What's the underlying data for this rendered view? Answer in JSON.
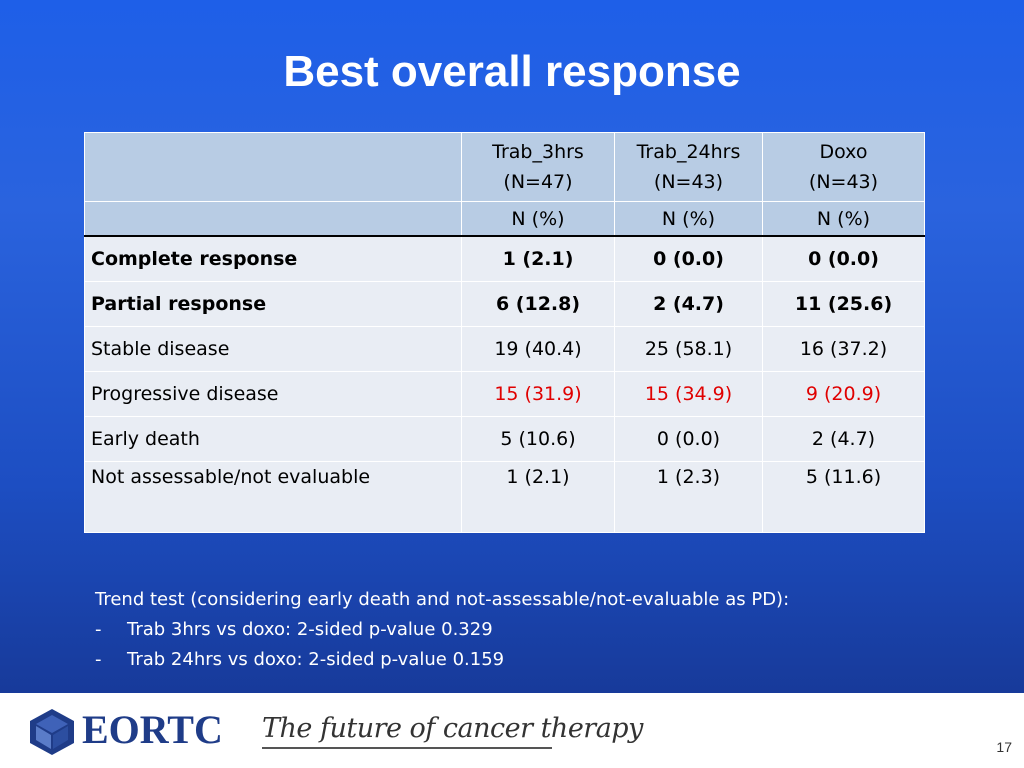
{
  "slide": {
    "title": "Best overall response",
    "page_number": "17"
  },
  "table": {
    "columns": [
      {
        "name": "Trab_3hrs",
        "n": "(N=47)",
        "unit": "N (%)"
      },
      {
        "name": "Trab_24hrs",
        "n": "(N=43)",
        "unit": "N (%)"
      },
      {
        "name": "Doxo",
        "n": "(N=43)",
        "unit": "N (%)"
      }
    ],
    "rows": [
      {
        "label": "Complete response",
        "values": [
          "1 (2.1)",
          "0 (0.0)",
          "0 (0.0)"
        ],
        "bold": true
      },
      {
        "label": "Partial response",
        "values": [
          "6 (12.8)",
          "2 (4.7)",
          "11 (25.6)"
        ],
        "bold": true
      },
      {
        "label": "Stable disease",
        "values": [
          "19 (40.4)",
          "25 (58.1)",
          "16 (37.2)"
        ]
      },
      {
        "label": "Progressive disease",
        "values": [
          "15 (31.9)",
          "15 (34.9)",
          "9 (20.9)"
        ],
        "color": "#e00000"
      },
      {
        "label": "Early death",
        "values": [
          "5 (10.6)",
          "0 (0.0)",
          "2 (4.7)"
        ]
      },
      {
        "label": "Not assessable/not evaluable",
        "values": [
          "1 (2.1)",
          "1 (2.3)",
          "5 (11.6)"
        ]
      }
    ]
  },
  "trend": {
    "intro": "Trend test (considering early death and not-assessable/not-evaluable as PD):",
    "bullets": [
      {
        "dash": "-",
        "text": "Trab 3hrs vs doxo: 2-sided p-value 0.329"
      },
      {
        "dash": "-",
        "text": "Trab 24hrs vs doxo: 2-sided p-value 0.159"
      }
    ]
  },
  "footer": {
    "logo_text": "EORTC",
    "tagline": "The future of cancer therapy"
  },
  "colors": {
    "background": "#1e5fe8",
    "header_fill": "#b8cce4",
    "row_fill": "#e9edf4",
    "highlight_red": "#e00000",
    "logo_blue": "#1f3c88"
  }
}
